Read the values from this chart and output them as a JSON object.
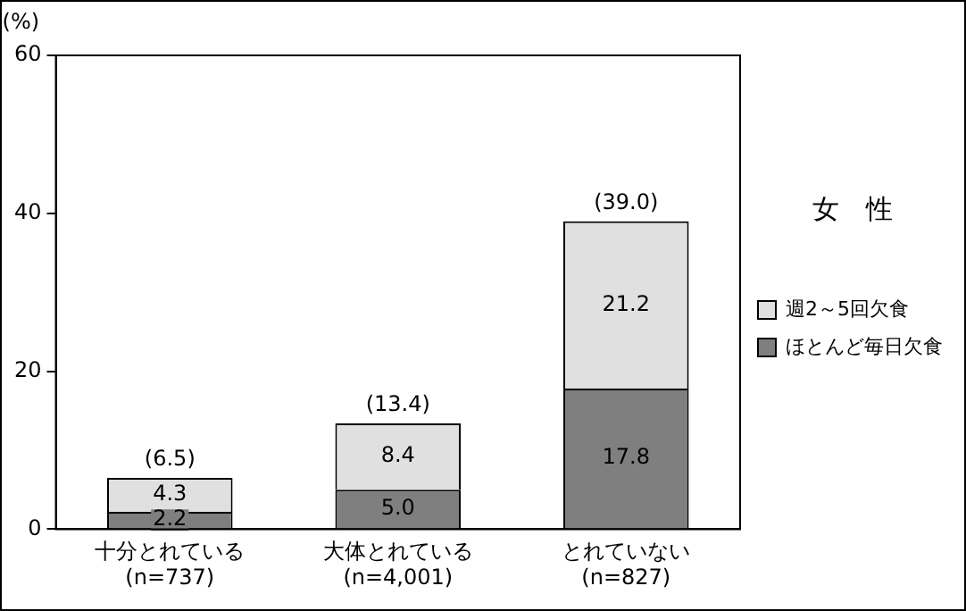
{
  "chart_data": {
    "type": "bar",
    "stacked": true,
    "ylabel": "(%)",
    "categories": [
      "十分とれている\n(n=737)",
      "大体とれている\n(n=4,001)",
      "とれていない\n(n=827)"
    ],
    "series": [
      {
        "name": "ほとんど毎日欠食",
        "color": "#7f7f7f",
        "values": [
          2.2,
          5.0,
          17.8
        ],
        "value_labels": [
          "2.2",
          "5.0",
          "17.8"
        ]
      },
      {
        "name": "週2～5回欠食",
        "color": "#e0e0e0",
        "values": [
          4.3,
          8.4,
          21.2
        ],
        "value_labels": [
          "4.3",
          "8.4",
          "21.2"
        ]
      }
    ],
    "totals": [
      "(6.5)",
      "(13.4)",
      "(39.0)"
    ],
    "ylim": [
      0,
      60
    ],
    "yticks": [
      0,
      20,
      40,
      60
    ],
    "grid": false,
    "legend": "right",
    "annotations": [
      "女　性"
    ]
  }
}
